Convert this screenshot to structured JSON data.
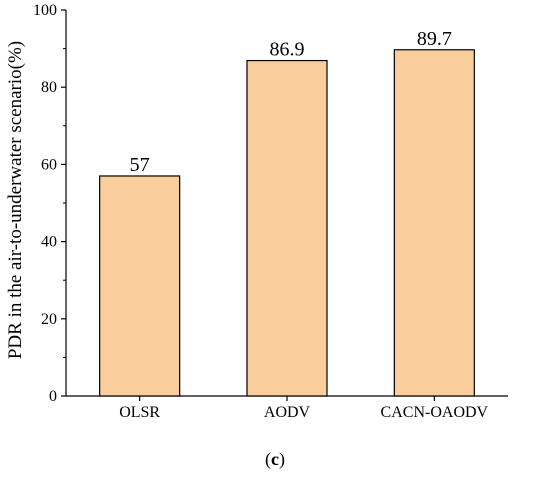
{
  "chart_data": {
    "type": "bar",
    "categories": [
      "OLSR",
      "AODV",
      "CACN-OAODV"
    ],
    "values": [
      57,
      86.9,
      89.7
    ],
    "value_labels": [
      "57",
      "86.9",
      "89.7"
    ],
    "ylabel": "PDR in the air-to-underwater scenario(%)",
    "xlabel": "",
    "ylim": [
      0,
      100
    ],
    "yticks": [
      0,
      20,
      40,
      60,
      80,
      100
    ],
    "grid": false,
    "bar_color": "#FACE9C",
    "bar_edge_color": "#000000"
  },
  "caption": {
    "open": "(",
    "letter": "c",
    "close": ")"
  }
}
